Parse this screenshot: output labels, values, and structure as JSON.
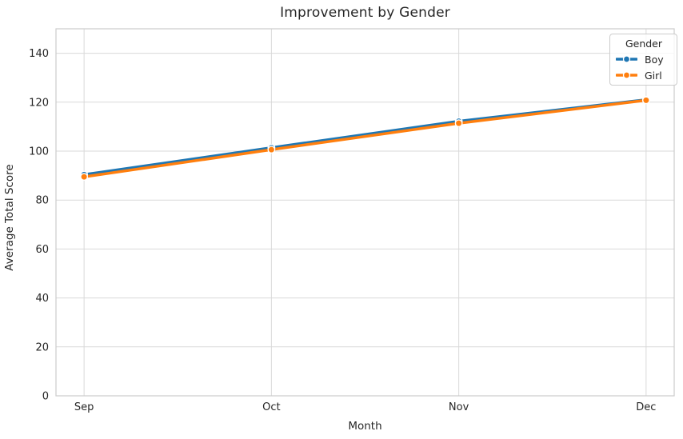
{
  "chart_data": {
    "type": "line",
    "title": "Improvement by Gender",
    "xlabel": "Month",
    "ylabel": "Average Total Score",
    "categories": [
      "Sep",
      "Oct",
      "Nov",
      "Dec"
    ],
    "series": [
      {
        "name": "Boy",
        "color": "#1f77b4",
        "values": [
          90.4,
          101.4,
          112.2,
          121.0
        ]
      },
      {
        "name": "Girl",
        "color": "#ff7f0e",
        "values": [
          89.5,
          100.6,
          111.4,
          120.8
        ]
      }
    ],
    "legend_title": "Gender",
    "legend_position": "upper right",
    "ylim": [
      0,
      150
    ],
    "yticks": [
      0,
      20,
      40,
      60,
      80,
      100,
      120,
      140
    ],
    "x_margin": 0.15,
    "grid": true,
    "colors": {
      "grid": "#d9d9d9",
      "spine": "#cccccc",
      "text": "#262626",
      "background": "#ffffff",
      "marker_edge": "#ffffff"
    }
  }
}
